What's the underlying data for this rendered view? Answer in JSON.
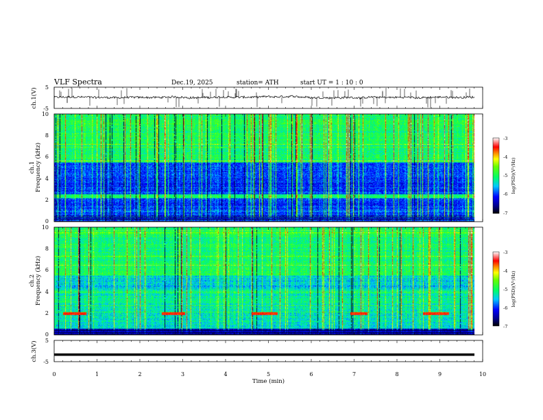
{
  "chart_data": {
    "type": "heatmap",
    "title": "VLF  Spectra",
    "header": {
      "date": "Dec.19, 2025",
      "station": "station= ATH",
      "start_ut": "start  UT  =   1  : 10 : 0"
    },
    "x_axis": {
      "label": "Time  (min)",
      "range": [
        0,
        10
      ],
      "ticks": [
        "0",
        "1",
        "2",
        "3",
        "4",
        "5",
        "6",
        "7",
        "8",
        "9",
        "10"
      ],
      "data_end": 9.8
    },
    "panels": [
      {
        "name": "ch1-waveform",
        "type": "line",
        "ylabel": "ch.1(V)",
        "ylim": [
          -5,
          5
        ],
        "yticks": [
          "5",
          "-5"
        ],
        "baseline": 0.2,
        "noise_amplitude": 0.5
      },
      {
        "name": "ch1-spectrogram",
        "type": "heatmap",
        "ylabel_top": "ch.1",
        "ylabel": "Frequency  (kHz)",
        "ylim": [
          0,
          10
        ],
        "yticks": [
          "0",
          "2",
          "4",
          "6",
          "8",
          "10"
        ],
        "colorbar_label": "log(PSD)(V²/Hz)",
        "colorbar_ticks": [
          "-3",
          "-4",
          "-5",
          "-6",
          "-7"
        ],
        "log_psd_range": [
          -7,
          -3
        ]
      },
      {
        "name": "ch2-spectrogram",
        "type": "heatmap",
        "ylabel_top": "ch.2",
        "ylabel": "Frequency  (kHz)",
        "ylim": [
          0,
          10
        ],
        "yticks": [
          "0",
          "2",
          "4",
          "6",
          "8",
          "10"
        ],
        "colorbar_label": "log(PSD)(V²/Hz)",
        "colorbar_ticks": [
          "-3",
          "-4",
          "-5",
          "-6",
          "-7"
        ],
        "log_psd_range": [
          -7,
          -3
        ],
        "tone_frequency_khz": 2.0,
        "tone_intervals_min": [
          [
            0.2,
            0.75
          ],
          [
            2.5,
            3.05
          ],
          [
            4.6,
            5.2
          ],
          [
            6.9,
            7.3
          ],
          [
            8.6,
            9.2
          ]
        ]
      },
      {
        "name": "ch3-waveform",
        "type": "line",
        "ylabel": "ch.3(V)",
        "ylim": [
          -5,
          5
        ],
        "yticks": [
          "5",
          "-5"
        ],
        "baseline": -1.7
      }
    ]
  }
}
